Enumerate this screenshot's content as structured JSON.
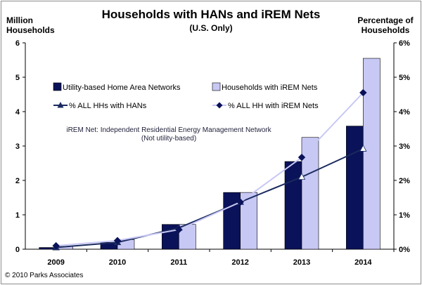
{
  "chart_data": {
    "type": "bar",
    "title": "Households with HANs and iREM Nets",
    "subtitle": "(U.S. Only)",
    "ylabel_left": "Million Households",
    "ylabel_right": "Percentage of Households",
    "categories": [
      "2009",
      "2010",
      "2011",
      "2012",
      "2013",
      "2014"
    ],
    "ylim": [
      0,
      6
    ],
    "ylim_right": [
      0,
      6
    ],
    "yticks": [
      "0",
      "1",
      "2",
      "3",
      "4",
      "5",
      "6"
    ],
    "yticks_right": [
      "0%",
      "1%",
      "2%",
      "3%",
      "4%",
      "5%",
      "6%"
    ],
    "series": [
      {
        "name": "Utility-based Home Area Networks",
        "kind": "bar",
        "axis": "left",
        "color": "#0a1259",
        "values": [
          0.05,
          0.2,
          0.72,
          1.65,
          2.55,
          3.58
        ]
      },
      {
        "name": "Households with iREM Nets",
        "kind": "bar",
        "axis": "left",
        "color": "#c8c8f5",
        "values": [
          0.08,
          0.28,
          0.72,
          1.65,
          3.25,
          5.55
        ]
      },
      {
        "name": "% ALL HHs with HANs",
        "kind": "line",
        "axis": "right",
        "marker": "triangle",
        "color": "#1a2a5e",
        "values": [
          0.05,
          0.2,
          0.62,
          1.37,
          2.1,
          2.92
        ]
      },
      {
        "name": "% ALL HH with iREM Nets",
        "kind": "line",
        "axis": "right",
        "marker": "diamond",
        "color": "#c8c8f5",
        "values": [
          0.1,
          0.25,
          0.57,
          1.37,
          2.67,
          4.55
        ]
      }
    ],
    "annotation_line1": "iREM Net: Independent Residential Energy Management Network",
    "annotation_line2": "(Not utility-based)",
    "legend": "inside-upper-left",
    "grid": false
  },
  "footer": {
    "copyright": "© 2010 Parks Associates"
  }
}
